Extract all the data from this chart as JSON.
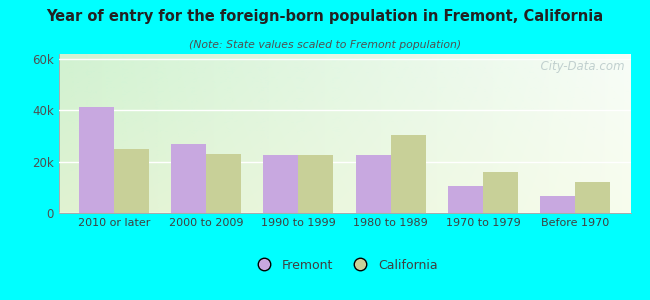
{
  "title": "Year of entry for the foreign-born population in Fremont, California",
  "subtitle": "(Note: State values scaled to Fremont population)",
  "categories": [
    "2010 or later",
    "2000 to 2009",
    "1990 to 1999",
    "1980 to 1989",
    "1970 to 1979",
    "Before 1970"
  ],
  "fremont_values": [
    41500,
    27000,
    22500,
    22500,
    10500,
    6500
  ],
  "california_values": [
    25000,
    23000,
    22500,
    30500,
    16000,
    12000
  ],
  "fremont_color": "#c8a8e0",
  "california_color": "#c8d098",
  "background_outer": "#00ffff",
  "ylim": [
    0,
    62000
  ],
  "yticks": [
    0,
    20000,
    40000,
    60000
  ],
  "ytick_labels": [
    "0",
    "20k",
    "40k",
    "60k"
  ],
  "bar_width": 0.38,
  "legend_fremont": "Fremont",
  "legend_california": "California",
  "watermark": "  City-Data.com"
}
